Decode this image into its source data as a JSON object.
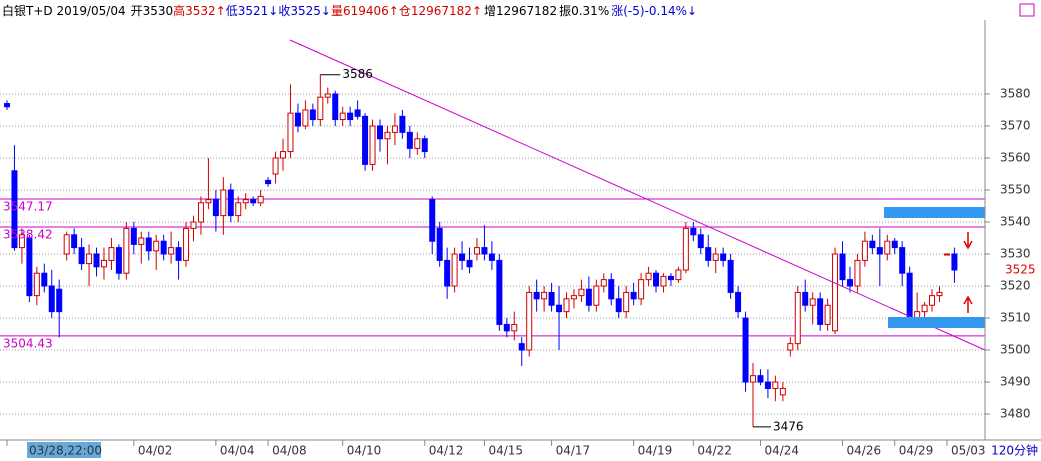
{
  "chart_data": {
    "type": "candlestick",
    "header": [
      {
        "text": "白银T+D 2019/05/04",
        "color": "#000000"
      },
      {
        "text": "开3530",
        "color": "#000000"
      },
      {
        "text": "高3532↑",
        "color": "#d00000"
      },
      {
        "text": "低3521↓",
        "color": "#0000d0"
      },
      {
        "text": "收3525↓",
        "color": "#0000d0"
      },
      {
        "text": "量619406↑",
        "color": "#d00000"
      },
      {
        "text": "仓12967182↑",
        "color": "#d00000"
      },
      {
        "text": "增12967182",
        "color": "#000000"
      },
      {
        "text": "振0.31%",
        "color": "#000000"
      },
      {
        "text": "涨(-5)-0.14%↓",
        "color": "#0000d0"
      }
    ],
    "period": "120分钟",
    "up_color": "#d00000",
    "down_color": "#0000ff",
    "ylim": [
      3471.9,
      3603.1
    ],
    "yticks": [
      3480,
      3490,
      3500,
      3510,
      3520,
      3530,
      3540,
      3550,
      3560,
      3570,
      3580
    ],
    "grid": true,
    "hlines": [
      3547.17,
      3538.42,
      3504.43
    ],
    "hline_color": "#cc00cc",
    "high_label": 3586,
    "low_label": 3476,
    "last_price": 3525,
    "categories": [
      "03/28,22:00",
      null,
      null,
      null,
      null,
      null,
      null,
      null,
      null,
      null,
      null,
      null,
      null,
      null,
      null,
      null,
      null,
      "04/02",
      null,
      null,
      null,
      null,
      null,
      null,
      null,
      null,
      null,
      null,
      "04/04",
      null,
      null,
      null,
      null,
      null,
      null,
      "04/08",
      null,
      null,
      null,
      null,
      null,
      null,
      null,
      null,
      null,
      "04/10",
      null,
      null,
      null,
      null,
      null,
      null,
      null,
      null,
      null,
      null,
      "04/12",
      null,
      null,
      null,
      null,
      null,
      null,
      null,
      "04/15",
      null,
      null,
      null,
      null,
      null,
      null,
      null,
      null,
      "04/17",
      null,
      null,
      null,
      null,
      null,
      null,
      null,
      null,
      null,
      null,
      "04/19",
      null,
      null,
      null,
      null,
      null,
      null,
      null,
      "04/22",
      null,
      null,
      null,
      null,
      null,
      null,
      null,
      null,
      "04/24",
      null,
      null,
      null,
      null,
      null,
      null,
      null,
      null,
      null,
      null,
      "04/26",
      null,
      null,
      null,
      null,
      null,
      null,
      "04/29",
      null,
      null,
      null,
      null,
      null,
      null,
      "05/03",
      null
    ],
    "candles": [
      [
        3577,
        3578,
        3575,
        3576
      ],
      [
        3556,
        3564,
        3531,
        3532
      ],
      [
        3532,
        3538,
        3527,
        3536
      ],
      [
        3535,
        3536,
        3515,
        3517
      ],
      [
        3517,
        3526,
        3514,
        3524
      ],
      [
        3524,
        3527,
        3518,
        3520
      ],
      [
        3520,
        3525,
        3510,
        3512
      ],
      [
        3519,
        3522,
        3504,
        3512
      ],
      [
        3530,
        3537,
        3528,
        3536
      ],
      [
        3536,
        3538,
        3530,
        3532
      ],
      [
        3532,
        3535,
        3525,
        3527
      ],
      [
        3527,
        3533,
        3520,
        3530
      ],
      [
        3530,
        3532,
        3523,
        3526
      ],
      [
        3526,
        3532,
        3522,
        3528
      ],
      [
        3528,
        3535,
        3525,
        3532
      ],
      [
        3532,
        3533,
        3522,
        3524
      ],
      [
        3524,
        3540,
        3522,
        3538
      ],
      [
        3538,
        3540,
        3530,
        3533
      ],
      [
        3533,
        3537,
        3527,
        3535
      ],
      [
        3535,
        3537,
        3528,
        3531
      ],
      [
        3531,
        3536,
        3525,
        3534
      ],
      [
        3534,
        3536,
        3528,
        3530
      ],
      [
        3530,
        3537,
        3527,
        3532
      ],
      [
        3532,
        3534,
        3522,
        3528
      ],
      [
        3528,
        3540,
        3526,
        3538
      ],
      [
        3538,
        3542,
        3534,
        3540
      ],
      [
        3540,
        3548,
        3536,
        3546
      ],
      [
        3546,
        3560,
        3544,
        3547
      ],
      [
        3547,
        3550,
        3537,
        3542
      ],
      [
        3542,
        3554,
        3536,
        3550
      ],
      [
        3550,
        3552,
        3540,
        3542
      ],
      [
        3542,
        3548,
        3540,
        3546
      ],
      [
        3546,
        3549,
        3544,
        3547
      ],
      [
        3547,
        3548,
        3545,
        3546
      ],
      [
        3546,
        3550,
        3545,
        3548
      ],
      [
        3553,
        3554,
        3551,
        3552
      ],
      [
        3555,
        3562,
        3552,
        3560
      ],
      [
        3560,
        3566,
        3556,
        3562
      ],
      [
        3562,
        3583,
        3560,
        3574
      ],
      [
        3574,
        3577,
        3568,
        3570
      ],
      [
        3570,
        3578,
        3569,
        3575
      ],
      [
        3575,
        3577,
        3570,
        3572
      ],
      [
        3572,
        3586,
        3570,
        3579
      ],
      [
        3579,
        3582,
        3577,
        3580
      ],
      [
        3580,
        3581,
        3570,
        3572
      ],
      [
        3572,
        3576,
        3570,
        3574
      ],
      [
        3574,
        3576,
        3570,
        3572
      ],
      [
        3575,
        3578,
        3572,
        3573
      ],
      [
        3573,
        3574,
        3556,
        3558
      ],
      [
        3558,
        3572,
        3556,
        3570
      ],
      [
        3570,
        3572,
        3562,
        3566
      ],
      [
        3566,
        3570,
        3558,
        3568
      ],
      [
        3568,
        3574,
        3564,
        3570
      ],
      [
        3573,
        3575,
        3566,
        3568
      ],
      [
        3568,
        3570,
        3560,
        3563
      ],
      [
        3563,
        3568,
        3561,
        3566
      ],
      [
        3566,
        3567,
        3560,
        3562
      ],
      [
        3547,
        3548,
        3530,
        3534
      ],
      [
        3538,
        3540,
        3526,
        3528
      ],
      [
        3528,
        3532,
        3516,
        3520
      ],
      [
        3520,
        3532,
        3518,
        3530
      ],
      [
        3530,
        3534,
        3525,
        3528
      ],
      [
        3528,
        3532,
        3524,
        3526
      ],
      [
        3530,
        3535,
        3528,
        3532
      ],
      [
        3532,
        3539,
        3528,
        3530
      ],
      [
        3530,
        3534,
        3525,
        3528
      ],
      [
        3528,
        3530,
        3506,
        3508
      ],
      [
        3508,
        3510,
        3504,
        3506
      ],
      [
        3506,
        3512,
        3503,
        3508
      ],
      [
        3502,
        3504,
        3495,
        3500
      ],
      [
        3500,
        3520,
        3498,
        3518
      ],
      [
        3518,
        3522,
        3512,
        3516
      ],
      [
        3516,
        3520,
        3512,
        3518
      ],
      [
        3518,
        3521,
        3512,
        3514
      ],
      [
        3514,
        3520,
        3500,
        3512
      ],
      [
        3512,
        3518,
        3510,
        3516
      ],
      [
        3516,
        3519,
        3513,
        3517
      ],
      [
        3517,
        3522,
        3515,
        3519
      ],
      [
        3519,
        3523,
        3512,
        3514
      ],
      [
        3514,
        3522,
        3512,
        3520
      ],
      [
        3520,
        3524,
        3518,
        3522
      ],
      [
        3522,
        3524,
        3514,
        3516
      ],
      [
        3516,
        3520,
        3510,
        3512
      ],
      [
        3512,
        3520,
        3510,
        3518
      ],
      [
        3518,
        3521,
        3514,
        3516
      ],
      [
        3516,
        3524,
        3514,
        3522
      ],
      [
        3522,
        3526,
        3520,
        3524
      ],
      [
        3524,
        3525,
        3518,
        3520
      ],
      [
        3520,
        3524,
        3518,
        3523
      ],
      [
        3523,
        3524,
        3520,
        3522
      ],
      [
        3522,
        3526,
        3521,
        3525
      ],
      [
        3525,
        3540,
        3524,
        3538
      ],
      [
        3538,
        3540,
        3534,
        3536
      ],
      [
        3536,
        3538,
        3530,
        3532
      ],
      [
        3532,
        3536,
        3526,
        3528
      ],
      [
        3528,
        3532,
        3524,
        3530
      ],
      [
        3530,
        3532,
        3526,
        3528
      ],
      [
        3528,
        3530,
        3516,
        3518
      ],
      [
        3518,
        3520,
        3510,
        3512
      ],
      [
        3510,
        3512,
        3487,
        3490
      ],
      [
        3490,
        3496,
        3476,
        3492
      ],
      [
        3492,
        3494,
        3489,
        3490
      ],
      [
        3490,
        3494,
        3485,
        3488
      ],
      [
        3488,
        3492,
        3484,
        3490
      ],
      [
        3486,
        3490,
        3484,
        3488
      ],
      [
        3500,
        3504,
        3498,
        3502
      ],
      [
        3502,
        3520,
        3500,
        3518
      ],
      [
        3518,
        3522,
        3512,
        3514
      ],
      [
        3514,
        3518,
        3508,
        3516
      ],
      [
        3516,
        3518,
        3506,
        3508
      ],
      [
        3508,
        3516,
        3506,
        3514
      ],
      [
        3506,
        3532,
        3505,
        3530
      ],
      [
        3530,
        3534,
        3520,
        3522
      ],
      [
        3522,
        3526,
        3518,
        3520
      ],
      [
        3520,
        3530,
        3518,
        3528
      ],
      [
        3528,
        3537,
        3526,
        3534
      ],
      [
        3534,
        3536,
        3530,
        3532
      ],
      [
        3532,
        3538,
        3520,
        3530
      ],
      [
        3530,
        3536,
        3528,
        3534
      ],
      [
        3534,
        3535,
        3530,
        3532
      ],
      [
        3532,
        3534,
        3520,
        3524
      ],
      [
        3524,
        3526,
        3507,
        3510
      ],
      [
        3510,
        3518,
        3508,
        3512
      ],
      [
        3512,
        3515,
        3510,
        3514
      ],
      [
        3514,
        3519,
        3512,
        3517
      ],
      [
        3517,
        3520,
        3515,
        3518
      ],
      [
        3530,
        3530,
        3530,
        3530
      ],
      [
        3530,
        3532,
        3521,
        3525
      ]
    ]
  }
}
